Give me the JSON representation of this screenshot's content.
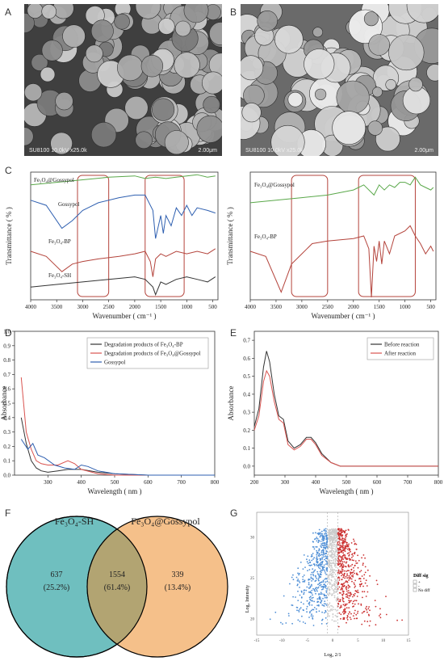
{
  "panels": {
    "A": {
      "letter": "A",
      "info": "SU8100 10.0kV x25.0k",
      "scale": "2.00μm"
    },
    "B": {
      "letter": "B",
      "info": "SU8100 10.0kV x25.0k",
      "scale": "2.00μm"
    },
    "C": {
      "letter": "C"
    },
    "D": {
      "letter": "D"
    },
    "E": {
      "letter": "E"
    },
    "F": {
      "letter": "F"
    },
    "G": {
      "letter": "G"
    }
  },
  "colors": {
    "green": "#5aa84a",
    "blue": "#2e5fb0",
    "red": "#b4443c",
    "dark": "#333333",
    "orange": "#d9534f",
    "venn_left": "#6fbfbf",
    "venn_right": "#f5c08a",
    "venn_overlap": "#b2a472",
    "volcano_up": "#cc3333",
    "volcano_down": "#4f8fd6",
    "volcano_ns": "#cccccc"
  },
  "chart_data": [
    {
      "panel": "C-left",
      "type": "line",
      "xlabel": "Wavenumber ( cm⁻¹ )",
      "ylabel": "Transmittance ( % )",
      "xlim": [
        4000,
        400
      ],
      "xticks": [
        "4000",
        "3500",
        "3000",
        "2500",
        "2000",
        "1500",
        "1000",
        "500"
      ],
      "series": [
        {
          "name": "Fe3O4@Gossypol",
          "color": "#5aa84a",
          "x": [
            4000,
            3500,
            3000,
            2500,
            2000,
            1800,
            1600,
            1400,
            1200,
            1000,
            800,
            600,
            450
          ],
          "y": [
            0.9,
            0.92,
            0.94,
            0.96,
            0.97,
            0.95,
            0.96,
            0.95,
            0.96,
            0.97,
            0.98,
            0.96,
            0.97
          ]
        },
        {
          "name": "Gossypol",
          "color": "#2e5fb0",
          "x": [
            4000,
            3700,
            3400,
            3200,
            3000,
            2700,
            2300,
            2000,
            1800,
            1650,
            1600,
            1500,
            1450,
            1400,
            1300,
            1200,
            1100,
            1000,
            900,
            800,
            600,
            450
          ],
          "y": [
            0.78,
            0.74,
            0.56,
            0.62,
            0.7,
            0.76,
            0.8,
            0.82,
            0.82,
            0.7,
            0.48,
            0.66,
            0.52,
            0.66,
            0.58,
            0.72,
            0.66,
            0.74,
            0.66,
            0.72,
            0.7,
            0.68
          ]
        },
        {
          "name": "Fe3O4-BP",
          "color": "#b4443c",
          "x": [
            4000,
            3700,
            3400,
            3200,
            3000,
            2700,
            2300,
            2000,
            1800,
            1700,
            1650,
            1600,
            1500,
            1400,
            1200,
            1000,
            800,
            600,
            450
          ],
          "y": [
            0.38,
            0.34,
            0.22,
            0.28,
            0.3,
            0.32,
            0.34,
            0.36,
            0.38,
            0.3,
            0.18,
            0.32,
            0.36,
            0.34,
            0.38,
            0.36,
            0.38,
            0.36,
            0.4
          ]
        },
        {
          "name": "Fe3O4-SH",
          "color": "#333333",
          "x": [
            4000,
            3500,
            3000,
            2500,
            2000,
            1800,
            1650,
            1600,
            1500,
            1400,
            1200,
            1000,
            800,
            600,
            450
          ],
          "y": [
            0.1,
            0.12,
            0.14,
            0.16,
            0.18,
            0.16,
            0.1,
            0.04,
            0.14,
            0.12,
            0.16,
            0.18,
            0.16,
            0.14,
            0.18
          ]
        }
      ],
      "boxes": [
        [
          3100,
          2500
        ],
        [
          1800,
          1050
        ]
      ]
    },
    {
      "panel": "C-right",
      "type": "line",
      "xlabel": "Wavenumber ( cm⁻¹ )",
      "ylabel": "Transmittance ( % )",
      "xlim": [
        4000,
        400
      ],
      "xticks": [
        "4000",
        "3500",
        "3000",
        "2500",
        "2000",
        "1500",
        "1000",
        "500"
      ],
      "series": [
        {
          "name": "Fe3O4@Gossypol",
          "color": "#5aa84a",
          "x": [
            4000,
            3500,
            3000,
            2500,
            2000,
            1800,
            1600,
            1500,
            1400,
            1300,
            1200,
            1100,
            1000,
            900,
            800,
            700,
            600,
            500,
            450
          ],
          "y": [
            0.76,
            0.78,
            0.8,
            0.82,
            0.86,
            0.9,
            0.82,
            0.9,
            0.86,
            0.9,
            0.88,
            0.92,
            0.92,
            0.9,
            0.96,
            0.9,
            0.88,
            0.86,
            0.88
          ]
        },
        {
          "name": "Fe3O4-BP",
          "color": "#b4443c",
          "x": [
            4000,
            3700,
            3400,
            3200,
            3000,
            2900,
            2800,
            2500,
            2000,
            1800,
            1700,
            1650,
            1600,
            1550,
            1500,
            1450,
            1400,
            1300,
            1200,
            1000,
            900,
            800,
            700,
            600,
            500,
            450
          ],
          "y": [
            0.38,
            0.34,
            0.06,
            0.28,
            0.36,
            0.4,
            0.44,
            0.46,
            0.48,
            0.5,
            0.4,
            0.02,
            0.42,
            0.3,
            0.46,
            0.28,
            0.46,
            0.36,
            0.5,
            0.54,
            0.58,
            0.5,
            0.44,
            0.36,
            0.42,
            0.38
          ]
        }
      ],
      "boxes": [
        [
          3200,
          2500
        ],
        [
          1900,
          800
        ]
      ]
    },
    {
      "panel": "D",
      "type": "line",
      "xlabel": "Wavelength ( nm )",
      "ylabel": "Absorbance",
      "xlim": [
        200,
        800
      ],
      "ylim": [
        0,
        1.0
      ],
      "xticks": [
        "300",
        "400",
        "500",
        "600",
        "700",
        "800"
      ],
      "yticks": [
        "0.0",
        "0.1",
        "0.2",
        "0.3",
        "0.4",
        "0.5",
        "0.6",
        "0.7",
        "0.8",
        "0.9",
        "1.0"
      ],
      "legend": "top-right",
      "series": [
        {
          "name": "Degradation products of Fe3O4-BP",
          "color": "#333333",
          "x": [
            220,
            235,
            250,
            265,
            280,
            300,
            330,
            360,
            400,
            450,
            500,
            600,
            700,
            800
          ],
          "y": [
            0.4,
            0.22,
            0.1,
            0.05,
            0.03,
            0.02,
            0.03,
            0.04,
            0.04,
            0.02,
            0.01,
            0.0,
            0.0,
            0.0
          ]
        },
        {
          "name": "Degradation products of Fe3O4@Gossypol",
          "color": "#d9534f",
          "x": [
            220,
            235,
            250,
            265,
            280,
            300,
            330,
            360,
            380,
            400,
            450,
            500,
            600,
            700,
            800
          ],
          "y": [
            0.68,
            0.3,
            0.18,
            0.1,
            0.08,
            0.07,
            0.07,
            0.1,
            0.08,
            0.04,
            0.01,
            0.0,
            0.0,
            0.0,
            0.0
          ]
        },
        {
          "name": "Gossypol",
          "color": "#2e5fb0",
          "x": [
            220,
            240,
            255,
            270,
            290,
            320,
            350,
            380,
            400,
            420,
            450,
            500,
            600,
            700,
            800
          ],
          "y": [
            0.25,
            0.18,
            0.22,
            0.14,
            0.12,
            0.07,
            0.05,
            0.04,
            0.07,
            0.06,
            0.03,
            0.01,
            0.0,
            0.0,
            0.0
          ]
        }
      ]
    },
    {
      "panel": "E",
      "type": "line",
      "xlabel": "Wavelength ( nm )",
      "ylabel": "Absorbance",
      "xlim": [
        200,
        800
      ],
      "ylim": [
        -0.05,
        0.75
      ],
      "xticks": [
        "200",
        "300",
        "400",
        "500",
        "600",
        "700",
        "800"
      ],
      "yticks": [
        "0.0",
        "0.1",
        "0.2",
        "0.3",
        "0.4",
        "0.5",
        "0.6",
        "0.7"
      ],
      "legend": "top-right",
      "series": [
        {
          "name": "Before reaction",
          "color": "#333333",
          "x": [
            200,
            215,
            230,
            240,
            250,
            265,
            280,
            295,
            310,
            330,
            350,
            370,
            385,
            400,
            420,
            450,
            480,
            500,
            600,
            700,
            800
          ],
          "y": [
            0.22,
            0.32,
            0.55,
            0.64,
            0.58,
            0.4,
            0.28,
            0.26,
            0.14,
            0.1,
            0.12,
            0.16,
            0.16,
            0.13,
            0.07,
            0.02,
            0.0,
            0.0,
            0.0,
            0.0,
            0.0
          ]
        },
        {
          "name": "After reaction",
          "color": "#d9534f",
          "x": [
            200,
            215,
            230,
            240,
            250,
            265,
            280,
            295,
            310,
            330,
            350,
            370,
            385,
            400,
            420,
            450,
            480,
            500,
            600,
            700,
            800
          ],
          "y": [
            0.2,
            0.28,
            0.47,
            0.53,
            0.5,
            0.36,
            0.26,
            0.24,
            0.12,
            0.09,
            0.11,
            0.15,
            0.15,
            0.12,
            0.06,
            0.02,
            0.0,
            0.0,
            0.0,
            0.0,
            0.0
          ]
        }
      ]
    }
  ],
  "venn": {
    "left_label": "Fe₃O₄-SH",
    "right_label": "Fe₃O₄@Gossypol",
    "left_count": "637",
    "left_pct": "(25.2%)",
    "mid_count": "1554",
    "mid_pct": "(61.4%)",
    "right_count": "339",
    "right_pct": "(13.4%)"
  },
  "volcano": {
    "xlabel": "Log₂ 2/1",
    "ylabel": "Log₂ Intensity",
    "xticks": [
      "-15",
      "-10",
      "-5",
      "0",
      "5",
      "10",
      "15"
    ],
    "yticks": [
      "20",
      "25",
      "30"
    ],
    "legend_title": "Diff sig",
    "legend_items": [
      "+",
      "-",
      "No diff"
    ]
  }
}
